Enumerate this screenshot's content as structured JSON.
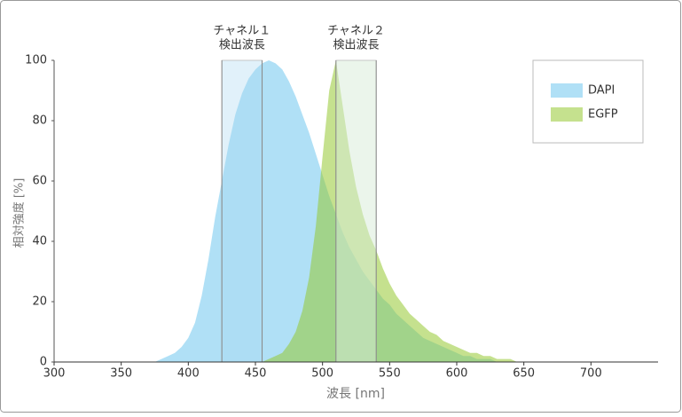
{
  "chart_data": {
    "type": "area",
    "x_label": "波長 [nm]",
    "y_label": "相対強度 [%]",
    "xlim": [
      300,
      750
    ],
    "xticks": [
      300,
      350,
      400,
      450,
      500,
      550,
      600,
      650,
      700
    ],
    "ylim": [
      0,
      100
    ],
    "yticks": [
      0,
      20,
      40,
      60,
      80,
      100
    ],
    "legend": "top-right",
    "x": [
      370,
      375,
      380,
      385,
      390,
      395,
      400,
      405,
      410,
      415,
      420,
      425,
      430,
      435,
      440,
      445,
      450,
      455,
      460,
      465,
      470,
      475,
      480,
      485,
      490,
      495,
      500,
      505,
      510,
      515,
      520,
      525,
      530,
      535,
      540,
      545,
      550,
      555,
      560,
      565,
      570,
      575,
      580,
      585,
      590,
      595,
      600,
      605,
      610,
      615,
      620,
      625,
      630,
      635,
      640,
      645,
      650,
      655,
      660
    ],
    "series": [
      {
        "name": "DAPI",
        "color": "#b0e0f6",
        "values": [
          0,
          0,
          1,
          2,
          3,
          5,
          8,
          13,
          22,
          34,
          48,
          60,
          72,
          82,
          89,
          94,
          97,
          99,
          100,
          99,
          97,
          93,
          88,
          82,
          76,
          69,
          62,
          55,
          49,
          43,
          38,
          34,
          30,
          27,
          24,
          21,
          19,
          16,
          14,
          12,
          10,
          8,
          7,
          6,
          5,
          4,
          3,
          2,
          2,
          1,
          1,
          1,
          0,
          0,
          0,
          0,
          0,
          0,
          0
        ]
      },
      {
        "name": "EGFP",
        "color": "rgba(150,200,50,0.55)",
        "values": [
          0,
          0,
          0,
          0,
          0,
          0,
          0,
          0,
          0,
          0,
          0,
          0,
          0,
          0,
          0,
          0,
          0,
          0,
          1,
          2,
          3,
          6,
          10,
          17,
          28,
          45,
          68,
          90,
          100,
          85,
          70,
          58,
          49,
          42,
          37,
          31,
          26,
          22,
          19,
          16,
          14,
          12,
          10,
          9,
          7,
          6,
          5,
          4,
          3,
          3,
          2,
          2,
          1,
          1,
          1,
          0,
          0,
          0,
          0
        ]
      }
    ],
    "bands": [
      {
        "label": [
          "チャネル１",
          "検出波長"
        ],
        "range": [
          425,
          455
        ],
        "color": "rgba(170,215,240,0.35)"
      },
      {
        "label": [
          "チャネル２",
          "検出波長"
        ],
        "range": [
          510,
          540
        ],
        "color": "rgba(215,235,215,0.5)"
      }
    ]
  }
}
